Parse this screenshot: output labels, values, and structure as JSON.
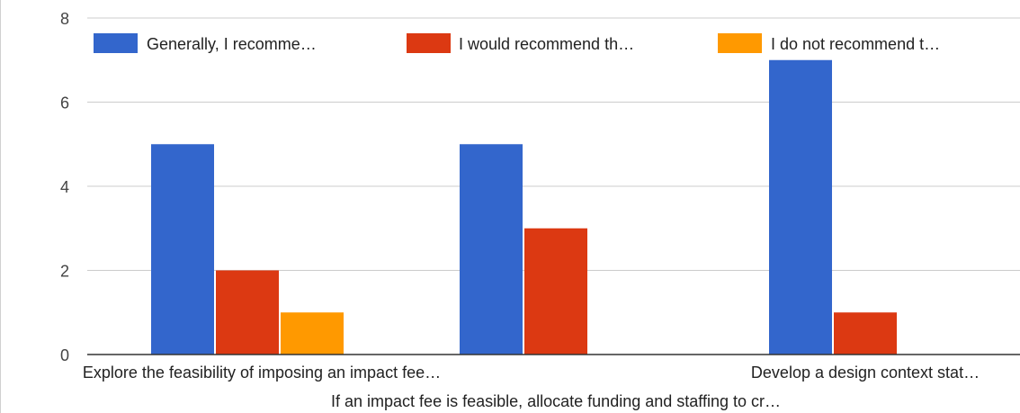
{
  "chart_data": {
    "type": "bar",
    "categories": [
      "Explore the feasibility of imposing an impact fee…",
      "If an impact fee is feasible, allocate funding and staffing to cr…",
      "Develop a design context stat…"
    ],
    "series": [
      {
        "name": "Generally, I recomme…",
        "color": "#3366cc",
        "values": [
          5,
          5,
          7
        ]
      },
      {
        "name": "I would recommend th…",
        "color": "#dc3912",
        "values": [
          2,
          3,
          1
        ]
      },
      {
        "name": "I do not recommend t…",
        "color": "#ff9900",
        "values": [
          1,
          0,
          0
        ]
      }
    ],
    "ylim": [
      0,
      8
    ],
    "yticks": [
      0,
      2,
      4,
      6,
      8
    ],
    "grid": true,
    "legend": "top"
  }
}
